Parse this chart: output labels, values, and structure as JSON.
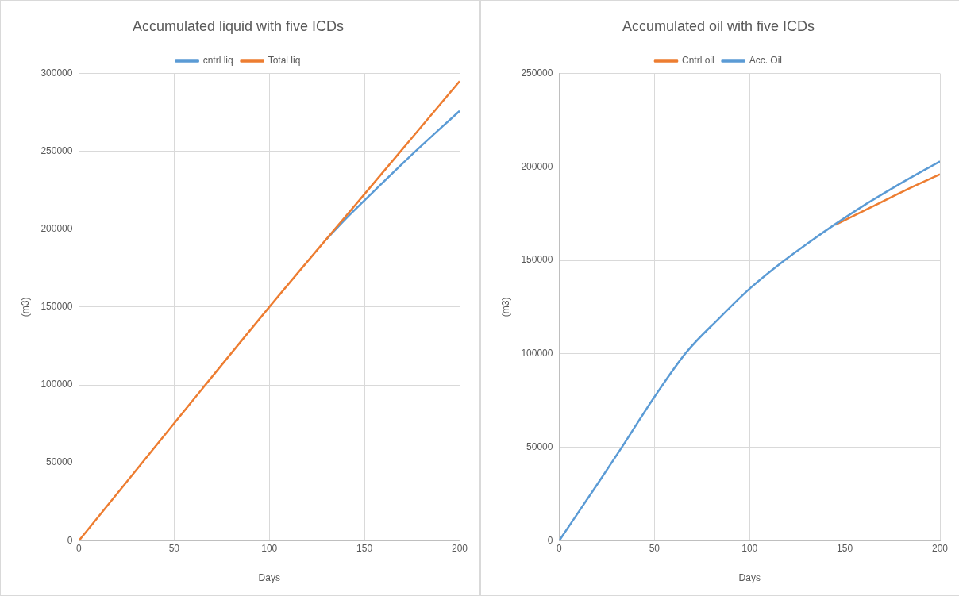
{
  "chart_data": [
    {
      "type": "line",
      "title": "Accumulated liquid with five ICDs",
      "xlabel": "Days",
      "ylabel": "(m3)",
      "xlim": [
        0,
        200
      ],
      "xticks": [
        0,
        50,
        100,
        150,
        200
      ],
      "ylim": [
        0,
        300000
      ],
      "yticks": [
        0,
        50000,
        100000,
        150000,
        200000,
        250000,
        300000
      ],
      "grid": true,
      "legend": "top",
      "marker": "none",
      "line_style": "solid",
      "series": [
        {
          "name": "cntrl liq",
          "color": "#5b9bd5",
          "x": [
            130,
            140,
            150,
            175,
            200
          ],
          "values": [
            193500,
            206500,
            218500,
            248000,
            276000
          ]
        },
        {
          "name": "Total liq",
          "color": "#ed7d31",
          "x": [
            0,
            100,
            150,
            200
          ],
          "values": [
            0,
            150000,
            222500,
            295000
          ]
        }
      ]
    },
    {
      "type": "line",
      "title": "Accumulated oil with five ICDs",
      "xlabel": "Days",
      "ylabel": "(m3)",
      "xlim": [
        0,
        200
      ],
      "xticks": [
        0,
        50,
        100,
        150,
        200
      ],
      "ylim": [
        0,
        250000
      ],
      "yticks": [
        0,
        50000,
        100000,
        150000,
        200000,
        250000
      ],
      "grid": true,
      "legend": "top",
      "marker": "none",
      "line_style": "solid",
      "series": [
        {
          "name": "Cntrl oil",
          "color": "#ed7d31",
          "x": [
            145,
            164,
            185,
            200
          ],
          "values": [
            169000,
            178500,
            189000,
            196000
          ]
        },
        {
          "name": "Acc. Oil",
          "color": "#5b9bd5",
          "x": [
            0,
            19.5,
            32.6,
            50.2,
            66.7,
            84.1,
            100.2,
            117.4,
            130.9,
            145.2,
            160.2,
            176.7,
            200
          ],
          "values": [
            0,
            29400,
            49500,
            77200,
            100700,
            119100,
            135000,
            149300,
            159400,
            169500,
            179500,
            189600,
            203000
          ]
        }
      ]
    }
  ]
}
